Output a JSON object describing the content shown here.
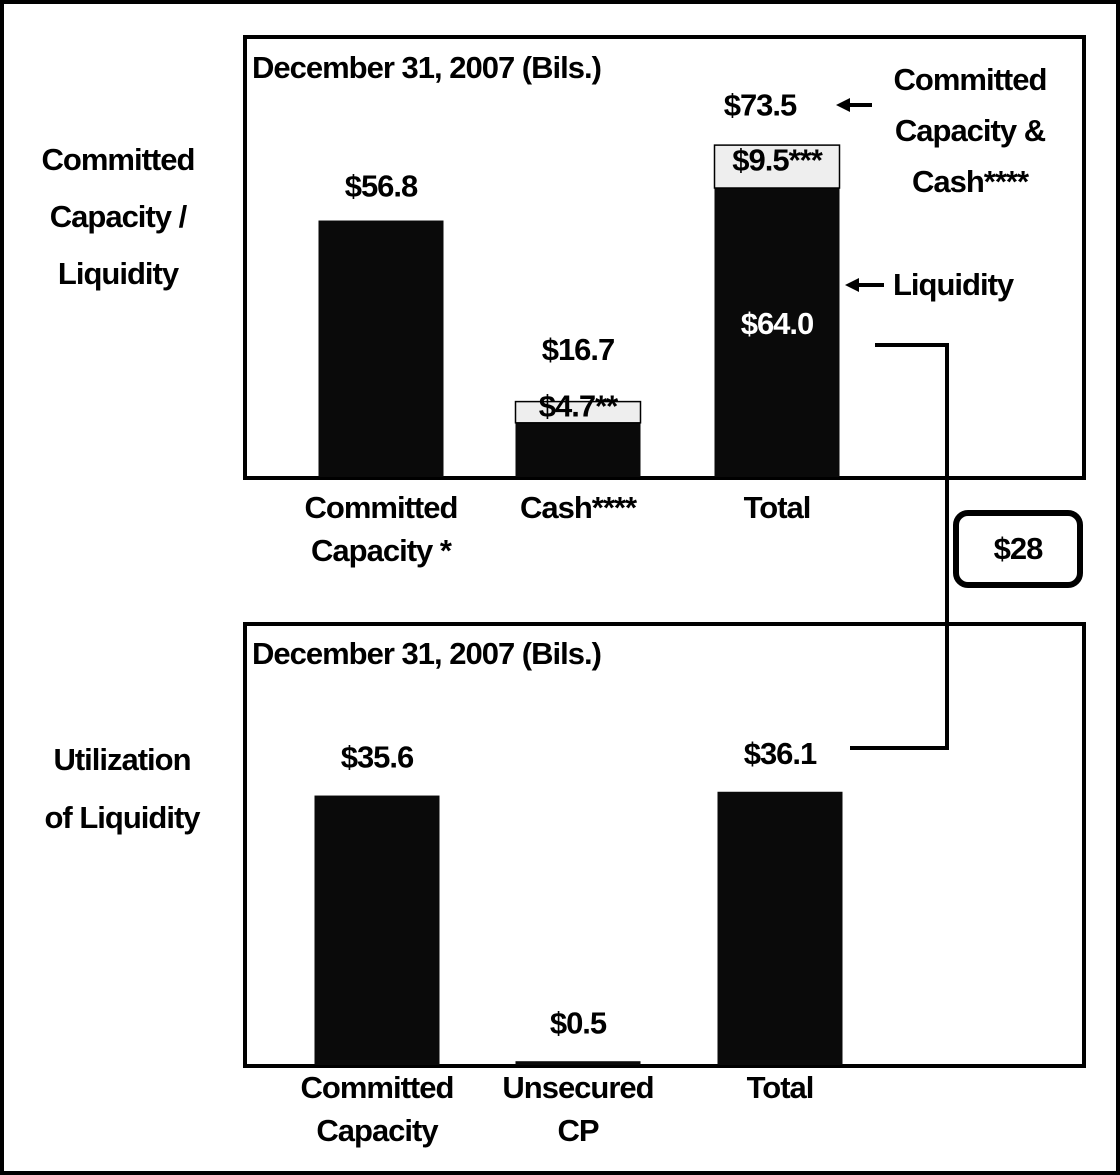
{
  "chart_data": [
    {
      "type": "bar",
      "stacked": true,
      "title": "December 31, 2007 (Bils.)",
      "side_label": [
        "Committed",
        "Capacity /",
        "Liquidity"
      ],
      "categories": [
        [
          "Committed",
          "Capacity *"
        ],
        [
          "Cash****"
        ],
        [
          "Total"
        ]
      ],
      "ylim": [
        0,
        97
      ],
      "series": [
        {
          "color": "#0a0a0a",
          "values": [
            56.8,
            12.0,
            64.0
          ],
          "value_labels": [
            "$56.8",
            null,
            "$64.0"
          ]
        },
        {
          "color": "#eeeeee",
          "values": [
            null,
            4.7,
            9.5
          ],
          "value_labels": [
            null,
            "$4.7**",
            "$9.5***"
          ]
        }
      ],
      "totals": [
        null,
        16.7,
        73.5
      ],
      "total_labels": [
        null,
        "$16.7",
        "$73.5"
      ],
      "annotations": [
        [
          "Committed",
          "Capacity &",
          "Cash****"
        ],
        [
          "Liquidity"
        ]
      ]
    },
    {
      "type": "bar",
      "title": "December 31, 2007 (Bils.)",
      "side_label": [
        "Utilization",
        "of Liquidity"
      ],
      "categories": [
        [
          "Committed",
          "Capacity"
        ],
        [
          "Unsecured",
          "CP"
        ],
        [
          "Total"
        ]
      ],
      "ylim": [
        0,
        58
      ],
      "color": "#0a0a0a",
      "values": [
        35.6,
        0.5,
        36.1
      ],
      "value_labels": [
        "$35.6",
        "$0.5",
        "$36.1"
      ]
    }
  ],
  "connector": {
    "label": "$28"
  }
}
